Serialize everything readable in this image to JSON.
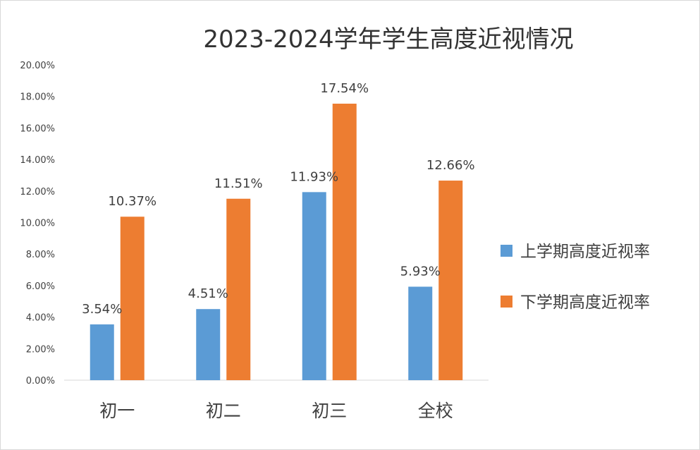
{
  "chart_data": {
    "type": "bar",
    "title": "2023-2024学年学生高度近视情况",
    "categories": [
      "初一",
      "初二",
      "初三",
      "全校"
    ],
    "series": [
      {
        "name": "上学期高度近视率",
        "color": "#5b9bd5",
        "values": [
          3.54,
          4.51,
          11.93,
          5.93
        ],
        "labels": [
          "3.54%",
          "4.51%",
          "11.93%",
          "5.93%"
        ]
      },
      {
        "name": "下学期高度近视率",
        "color": "#ed7d31",
        "values": [
          10.37,
          11.51,
          17.54,
          12.66
        ],
        "labels": [
          "10.37%",
          "11.51%",
          "17.54%",
          "12.66%"
        ]
      }
    ],
    "yticks": [
      "0.00%",
      "2.00%",
      "4.00%",
      "6.00%",
      "8.00%",
      "10.00%",
      "12.00%",
      "14.00%",
      "16.00%",
      "18.00%",
      "20.00%"
    ],
    "ylim": [
      0,
      20
    ],
    "grid": false,
    "legend_position": "right"
  }
}
